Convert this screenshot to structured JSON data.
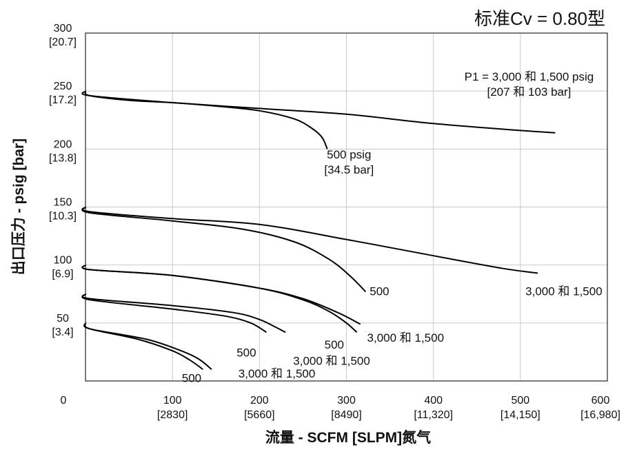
{
  "chart_data": {
    "type": "line",
    "title": "标准Cv = 0.80型",
    "xlabel": "流量 - SCFM [SLPM]氮气",
    "ylabel": "出口压力 - psig [bar]",
    "xlim": [
      0,
      600
    ],
    "ylim": [
      0,
      300
    ],
    "grid": true,
    "x_ticks": [
      {
        "value": 0,
        "label": "0",
        "sub": ""
      },
      {
        "value": 100,
        "label": "100",
        "sub": "[2830]"
      },
      {
        "value": 200,
        "label": "200",
        "sub": "[5660]"
      },
      {
        "value": 300,
        "label": "300",
        "sub": "[8490]"
      },
      {
        "value": 400,
        "label": "400",
        "sub": "[11,320]"
      },
      {
        "value": 500,
        "label": "500",
        "sub": "[14,150]"
      },
      {
        "value": 600,
        "label": "600",
        "sub": "[16,980]"
      }
    ],
    "y_ticks": [
      {
        "value": 50,
        "label": "50",
        "sub": "[3.4]"
      },
      {
        "value": 100,
        "label": "100",
        "sub": "[6.9]"
      },
      {
        "value": 150,
        "label": "150",
        "sub": "[10.3]"
      },
      {
        "value": 200,
        "label": "200",
        "sub": "[13.8]"
      },
      {
        "value": 250,
        "label": "250",
        "sub": "[17.2]"
      },
      {
        "value": 300,
        "label": "300",
        "sub": "[20.7]"
      }
    ],
    "series": [
      {
        "set": 250,
        "x": [
          0,
          5,
          50,
          100,
          150,
          200,
          240,
          260,
          272,
          278
        ],
        "y": [
          250,
          246,
          242,
          240,
          237,
          233,
          226,
          218,
          210,
          200
        ]
      },
      {
        "set": 250,
        "x": [
          0,
          5,
          100,
          200,
          300,
          400,
          500,
          540
        ],
        "y": [
          250,
          246,
          240,
          235,
          230,
          222,
          216,
          214
        ]
      },
      {
        "set": 150,
        "x": [
          0,
          5,
          100,
          180,
          240,
          280,
          305,
          322
        ],
        "y": [
          150,
          145,
          138,
          131,
          120,
          105,
          90,
          77
        ]
      },
      {
        "set": 150,
        "x": [
          0,
          5,
          100,
          200,
          300,
          400,
          480,
          520
        ],
        "y": [
          150,
          146,
          140,
          135,
          122,
          108,
          97,
          93
        ]
      },
      {
        "set": 100,
        "x": [
          0,
          5,
          100,
          200,
          250,
          280,
          300,
          312
        ],
        "y": [
          100,
          96,
          91,
          80,
          70,
          60,
          50,
          42
        ]
      },
      {
        "set": 100,
        "x": [
          0,
          5,
          100,
          200,
          250,
          290,
          316
        ],
        "y": [
          100,
          96,
          91,
          80,
          71,
          59,
          49
        ]
      },
      {
        "set": 75,
        "x": [
          0,
          5,
          100,
          160,
          190,
          208
        ],
        "y": [
          75,
          70,
          62,
          56,
          50,
          42
        ]
      },
      {
        "set": 75,
        "x": [
          0,
          5,
          100,
          170,
          200,
          217,
          230
        ],
        "y": [
          75,
          71,
          65,
          59,
          53,
          47,
          42
        ]
      },
      {
        "set": 50,
        "x": [
          0,
          5,
          60,
          100,
          120,
          135
        ],
        "y": [
          50,
          45,
          36,
          26,
          18,
          10
        ]
      },
      {
        "set": 50,
        "x": [
          0,
          5,
          70,
          110,
          130,
          145
        ],
        "y": [
          50,
          45,
          36,
          26,
          19,
          10
        ]
      }
    ],
    "annotations": [
      {
        "lines": [
          "P1 = 3,000 和 1,500 psig",
          "[207 和 103 bar]"
        ],
        "x": 510,
        "y": 259
      },
      {
        "lines": [
          "500 psig",
          "[34.5 bar]"
        ],
        "x": 303,
        "y": 192
      },
      {
        "lines": [
          "500"
        ],
        "x": 338,
        "y": 74
      },
      {
        "lines": [
          "3,000 和 1,500"
        ],
        "x": 550,
        "y": 74
      },
      {
        "lines": [
          "500"
        ],
        "x": 286,
        "y": 28
      },
      {
        "lines": [
          "3,000 和 1,500"
        ],
        "x": 368,
        "y": 34
      },
      {
        "lines": [
          "500"
        ],
        "x": 185,
        "y": 21
      },
      {
        "lines": [
          "3,000 和 1,500"
        ],
        "x": 283,
        "y": 14
      },
      {
        "lines": [
          "500"
        ],
        "x": 122,
        "y": -1
      },
      {
        "lines": [
          "3,000 和 1,500"
        ],
        "x": 220,
        "y": 3
      }
    ]
  }
}
